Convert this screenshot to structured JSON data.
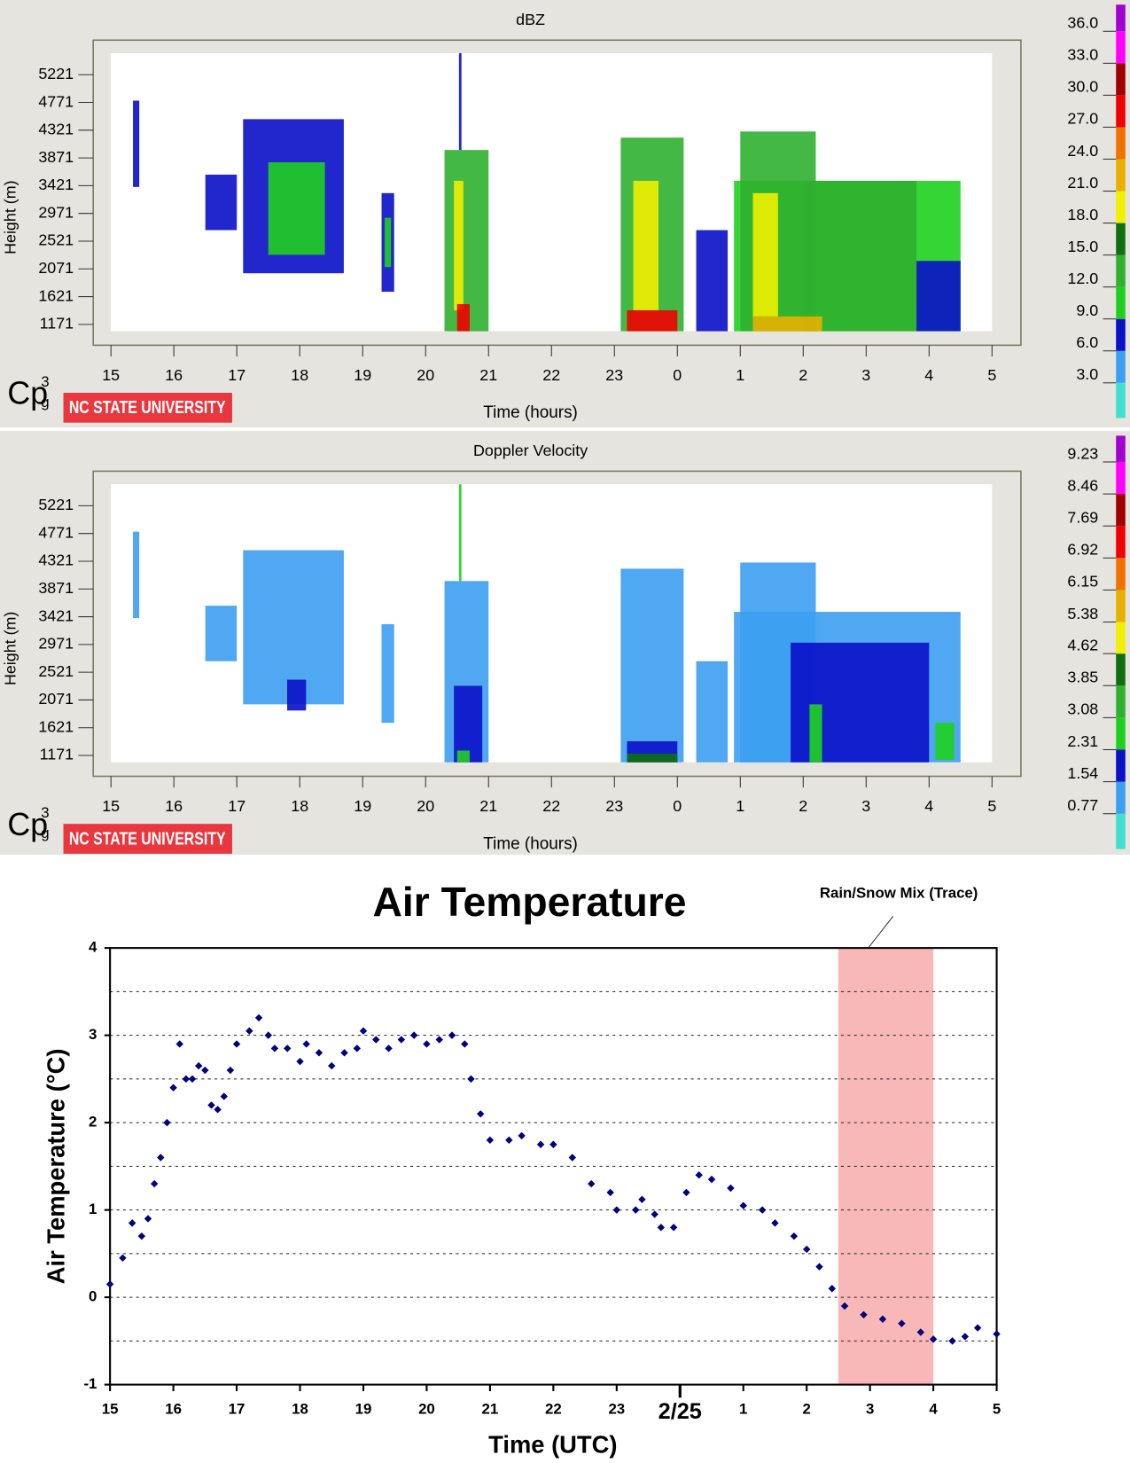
{
  "chart_data": [
    {
      "type": "heatmap",
      "title": "dBZ",
      "xlabel": "Time (hours)",
      "ylabel": "Height (m)",
      "xlim": [
        15,
        29
      ],
      "xticks": [
        15,
        16,
        17,
        18,
        19,
        20,
        21,
        22,
        23,
        {
          "value": 24,
          "label": "0"
        },
        {
          "value": 25,
          "label": "1"
        },
        {
          "value": 26,
          "label": "2"
        },
        {
          "value": 27,
          "label": "3"
        },
        {
          "value": 28,
          "label": "4"
        },
        {
          "value": 29,
          "label": "5"
        }
      ],
      "ylim": [
        1060,
        5570
      ],
      "yticks": [
        1171,
        1621,
        2071,
        2521,
        2971,
        3421,
        3871,
        4321,
        4771,
        5221
      ],
      "echoes": [
        {
          "x": [
            15.35,
            15.45
          ],
          "y": [
            3400,
            4800
          ],
          "value": 7
        },
        {
          "x": [
            16.5,
            17.0
          ],
          "y": [
            2700,
            3600
          ],
          "value": 7
        },
        {
          "x": [
            17.1,
            18.7
          ],
          "y": [
            2000,
            4500
          ],
          "value": 7
        },
        {
          "x": [
            17.5,
            18.4
          ],
          "y": [
            2300,
            3800
          ],
          "value": 10
        },
        {
          "x": [
            19.3,
            19.5
          ],
          "y": [
            1700,
            3300
          ],
          "value": 8
        },
        {
          "x": [
            19.35,
            19.45
          ],
          "y": [
            2100,
            2900
          ],
          "value": 10
        },
        {
          "x": [
            20.53,
            20.57
          ],
          "y": [
            4000,
            5570
          ],
          "value": 7
        },
        {
          "x": [
            20.3,
            21.0
          ],
          "y": [
            1060,
            4000
          ],
          "value": 12
        },
        {
          "x": [
            20.45,
            20.6
          ],
          "y": [
            1400,
            3500
          ],
          "value": 20
        },
        {
          "x": [
            20.5,
            20.7
          ],
          "y": [
            1060,
            1500
          ],
          "value": 28
        },
        {
          "x": [
            23.1,
            24.1
          ],
          "y": [
            1060,
            4200
          ],
          "value": 12
        },
        {
          "x": [
            23.3,
            23.7
          ],
          "y": [
            1400,
            3500
          ],
          "value": 19
        },
        {
          "x": [
            23.2,
            24.0
          ],
          "y": [
            1060,
            1400
          ],
          "value": 27
        },
        {
          "x": [
            24.3,
            24.8
          ],
          "y": [
            1060,
            2700
          ],
          "value": 8
        },
        {
          "x": [
            24.9,
            28.5
          ],
          "y": [
            1060,
            3500
          ],
          "value": 11
        },
        {
          "x": [
            25.0,
            26.2
          ],
          "y": [
            1060,
            4300
          ],
          "value": 13
        },
        {
          "x": [
            25.2,
            25.6
          ],
          "y": [
            1300,
            3300
          ],
          "value": 19
        },
        {
          "x": [
            26.0,
            27.8
          ],
          "y": [
            1060,
            3500
          ],
          "value": 12
        },
        {
          "x": [
            27.8,
            28.5
          ],
          "y": [
            1060,
            2200
          ],
          "value": 7
        },
        {
          "x": [
            25.2,
            26.3
          ],
          "y": [
            1060,
            1300
          ],
          "value": 23
        }
      ],
      "colorbar": {
        "lim": [
          -0.3,
          38.5
        ],
        "ticks": [
          {
            "value": 3,
            "label": "3.0"
          },
          {
            "value": 6,
            "label": "6.0"
          },
          {
            "value": 9,
            "label": "9.0"
          },
          {
            "value": 12,
            "label": "12.0"
          },
          {
            "value": 15,
            "label": "15.0"
          },
          {
            "value": 18,
            "label": "18.0"
          },
          {
            "value": 21,
            "label": "21.0"
          },
          {
            "value": 24,
            "label": "24.0"
          },
          {
            "value": 27,
            "label": "27.0"
          },
          {
            "value": 30,
            "label": "30.0"
          },
          {
            "value": 33,
            "label": "33.0"
          },
          {
            "value": 36,
            "label": "36.0"
          }
        ],
        "colors": [
          "#40e0d0",
          "#3c9ff0",
          "#0a10c8",
          "#20d020",
          "#30b030",
          "#107010",
          "#f0f000",
          "#e8b000",
          "#f07000",
          "#f00000",
          "#a00000",
          "#ff00ff",
          "#a000d0"
        ]
      },
      "badge": [
        "Cp",
        "3",
        "g"
      ],
      "logo": "NC STATE UNIVERSITY"
    },
    {
      "type": "heatmap",
      "title": "Doppler Velocity",
      "xlabel": "Time (hours)",
      "ylabel": "Height (m)",
      "xlim": [
        15,
        29
      ],
      "xticks": [
        15,
        16,
        17,
        18,
        19,
        20,
        21,
        22,
        23,
        {
          "value": 24,
          "label": "0"
        },
        {
          "value": 25,
          "label": "1"
        },
        {
          "value": 26,
          "label": "2"
        },
        {
          "value": 27,
          "label": "3"
        },
        {
          "value": 28,
          "label": "4"
        },
        {
          "value": 29,
          "label": "5"
        }
      ],
      "ylim": [
        1060,
        5570
      ],
      "yticks": [
        1171,
        1621,
        2071,
        2521,
        2971,
        3421,
        3871,
        4321,
        4771,
        5221
      ],
      "echoes": [
        {
          "x": [
            15.35,
            15.45
          ],
          "y": [
            3400,
            4800
          ],
          "value": 1.2
        },
        {
          "x": [
            16.5,
            17.0
          ],
          "y": [
            2700,
            3600
          ],
          "value": 1.2
        },
        {
          "x": [
            17.1,
            18.7
          ],
          "y": [
            2000,
            4500
          ],
          "value": 1.2
        },
        {
          "x": [
            17.8,
            18.1
          ],
          "y": [
            1900,
            2400
          ],
          "value": 2.0
        },
        {
          "x": [
            19.3,
            19.5
          ],
          "y": [
            1700,
            3300
          ],
          "value": 1.2
        },
        {
          "x": [
            20.53,
            20.57
          ],
          "y": [
            4000,
            5570
          ],
          "value": 2.7
        },
        {
          "x": [
            20.3,
            21.0
          ],
          "y": [
            1060,
            4000
          ],
          "value": 1.2
        },
        {
          "x": [
            20.45,
            20.9
          ],
          "y": [
            1060,
            2300
          ],
          "value": 2.0
        },
        {
          "x": [
            20.5,
            20.7
          ],
          "y": [
            1060,
            1250
          ],
          "value": 2.7
        },
        {
          "x": [
            23.1,
            24.1
          ],
          "y": [
            1060,
            4200
          ],
          "value": 1.2
        },
        {
          "x": [
            23.2,
            24.0
          ],
          "y": [
            1060,
            1400
          ],
          "value": 2.0
        },
        {
          "x": [
            23.2,
            24.0
          ],
          "y": [
            1060,
            1200
          ],
          "value": 4.2
        },
        {
          "x": [
            24.3,
            24.8
          ],
          "y": [
            1060,
            2700
          ],
          "value": 1.2
        },
        {
          "x": [
            24.9,
            28.5
          ],
          "y": [
            1060,
            3500
          ],
          "value": 1.2
        },
        {
          "x": [
            25.0,
            26.2
          ],
          "y": [
            1060,
            4300
          ],
          "value": 1.2
        },
        {
          "x": [
            25.8,
            28.0
          ],
          "y": [
            1060,
            3000
          ],
          "value": 2.0
        },
        {
          "x": [
            26.1,
            26.3
          ],
          "y": [
            1060,
            2000
          ],
          "value": 2.7
        },
        {
          "x": [
            28.1,
            28.4
          ],
          "y": [
            1100,
            1700
          ],
          "value": 2.7
        }
      ],
      "colorbar": {
        "lim": [
          -0.08,
          9.86
        ],
        "ticks": [
          0.77,
          1.54,
          2.31,
          3.08,
          3.85,
          4.62,
          5.38,
          6.15,
          6.92,
          7.69,
          8.46,
          9.23
        ],
        "colors": [
          "#40e0d0",
          "#3c9ff0",
          "#0a10c8",
          "#20d020",
          "#30b030",
          "#107010",
          "#f0f000",
          "#e8b000",
          "#f07000",
          "#f00000",
          "#a00000",
          "#ff00ff",
          "#a000d0"
        ]
      },
      "badge": [
        "Cp",
        "3",
        "g"
      ],
      "logo": "NC STATE UNIVERSITY"
    },
    {
      "type": "scatter",
      "title": "Air Temperature",
      "xlabel": "Time (UTC)",
      "ylabel": "Air Temperature (°C)",
      "annotation": "Rain/Snow Mix  (Trace)",
      "shade": {
        "x": [
          26.5,
          28
        ],
        "color": "#f9b8b8"
      },
      "xlim": [
        15,
        29
      ],
      "xticks": [
        15,
        16,
        17,
        18,
        19,
        20,
        21,
        22,
        23,
        {
          "value": 24,
          "label": "2/25"
        },
        {
          "value": 25,
          "label": "1"
        },
        {
          "value": 26,
          "label": "2"
        },
        {
          "value": 27,
          "label": "3"
        },
        {
          "value": 28,
          "label": "4"
        },
        {
          "value": 29,
          "label": "5"
        }
      ],
      "ylim": [
        -1,
        4
      ],
      "yticks": [
        -1,
        0,
        1,
        2,
        3,
        4
      ],
      "ygrid": [
        -0.5,
        0,
        0.5,
        1,
        1.5,
        2,
        2.5,
        3,
        3.5
      ],
      "color": "#000080",
      "x": [
        15.0,
        15.2,
        15.35,
        15.5,
        15.6,
        15.7,
        15.8,
        15.9,
        16.0,
        16.1,
        16.2,
        16.3,
        16.4,
        16.5,
        16.6,
        16.7,
        16.8,
        16.9,
        17.0,
        17.2,
        17.35,
        17.5,
        17.6,
        17.8,
        18.0,
        18.1,
        18.3,
        18.5,
        18.7,
        18.9,
        19.0,
        19.2,
        19.4,
        19.6,
        19.8,
        20.0,
        20.2,
        20.4,
        20.6,
        20.7,
        20.85,
        21.0,
        21.3,
        21.5,
        21.8,
        22.0,
        22.3,
        22.6,
        22.9,
        23.0,
        23.3,
        23.4,
        23.6,
        23.7,
        23.9,
        24.1,
        24.3,
        24.5,
        24.8,
        25.0,
        25.3,
        25.5,
        25.8,
        26.0,
        26.2,
        26.4,
        26.6,
        26.9,
        27.2,
        27.5,
        27.8,
        28.0,
        28.3,
        28.5,
        28.7,
        29.0
      ],
      "values": [
        0.15,
        0.45,
        0.85,
        0.7,
        0.9,
        1.3,
        1.6,
        2.0,
        2.4,
        2.9,
        2.5,
        2.5,
        2.65,
        2.6,
        2.2,
        2.15,
        2.3,
        2.6,
        2.9,
        3.05,
        3.2,
        3.0,
        2.85,
        2.85,
        2.7,
        2.9,
        2.8,
        2.65,
        2.8,
        2.85,
        3.05,
        2.95,
        2.85,
        2.95,
        3.0,
        2.9,
        2.95,
        3.0,
        2.9,
        2.5,
        2.1,
        1.8,
        1.8,
        1.85,
        1.75,
        1.75,
        1.6,
        1.3,
        1.2,
        1.0,
        1.0,
        1.12,
        0.95,
        0.8,
        0.8,
        1.2,
        1.4,
        1.35,
        1.25,
        1.05,
        1.0,
        0.85,
        0.7,
        0.55,
        0.35,
        0.1,
        -0.1,
        -0.2,
        -0.25,
        -0.3,
        -0.4,
        -0.48,
        -0.5,
        -0.45,
        -0.35,
        -0.42
      ]
    }
  ]
}
